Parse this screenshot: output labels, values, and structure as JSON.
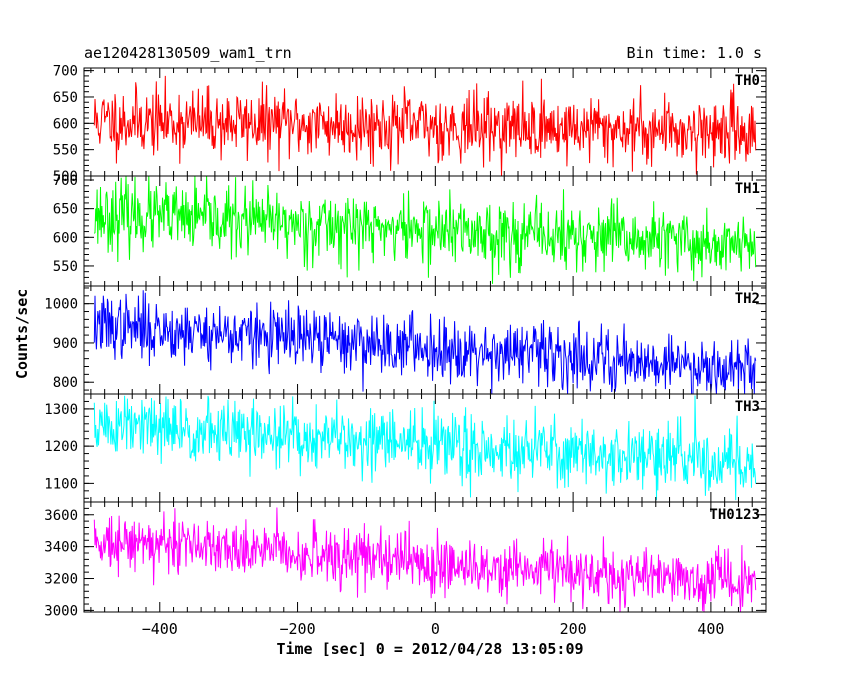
{
  "chart_data": {
    "type": "line",
    "title": "ae120428130509_wam1_trn",
    "bin_time_label": "Bin time: 1.0 s",
    "xlabel": "Time [sec] 0 = 2012/04/28 13:05:09",
    "ylabel": "Counts/sec",
    "xlim": [
      -510,
      480
    ],
    "x_range_data": [
      -495,
      465
    ],
    "x_ticks": [
      -400,
      -200,
      0,
      200,
      400
    ],
    "panels": [
      {
        "name": "TH0",
        "color": "#ff0000",
        "ylim": [
          500,
          705
        ],
        "ticks": [
          500,
          550,
          600,
          650,
          700
        ],
        "mean_start": 605,
        "mean_end": 585,
        "noise": 32,
        "seed": 11
      },
      {
        "name": "TH1",
        "color": "#00ff00",
        "ylim": [
          515,
          707
        ],
        "ticks": [
          550,
          600,
          650,
          700
        ],
        "mean_start": 640,
        "mean_end": 585,
        "noise": 30,
        "seed": 23
      },
      {
        "name": "TH2",
        "color": "#0000ff",
        "ylim": [
          770,
          1045
        ],
        "ticks": [
          800,
          900,
          1000
        ],
        "mean_start": 945,
        "mean_end": 835,
        "noise": 40,
        "seed": 37
      },
      {
        "name": "TH3",
        "color": "#00ffff",
        "ylim": [
          1050,
          1340
        ],
        "ticks": [
          1100,
          1200,
          1300
        ],
        "mean_start": 1255,
        "mean_end": 1155,
        "noise": 45,
        "seed": 51
      },
      {
        "name": "TH0123",
        "color": "#ff00ff",
        "ylim": [
          2990,
          3680
        ],
        "ticks": [
          3000,
          3200,
          3400,
          3600
        ],
        "mean_start": 3450,
        "mean_end": 3160,
        "noise": 90,
        "seed": 73
      }
    ],
    "grid": false,
    "legend": "none"
  }
}
